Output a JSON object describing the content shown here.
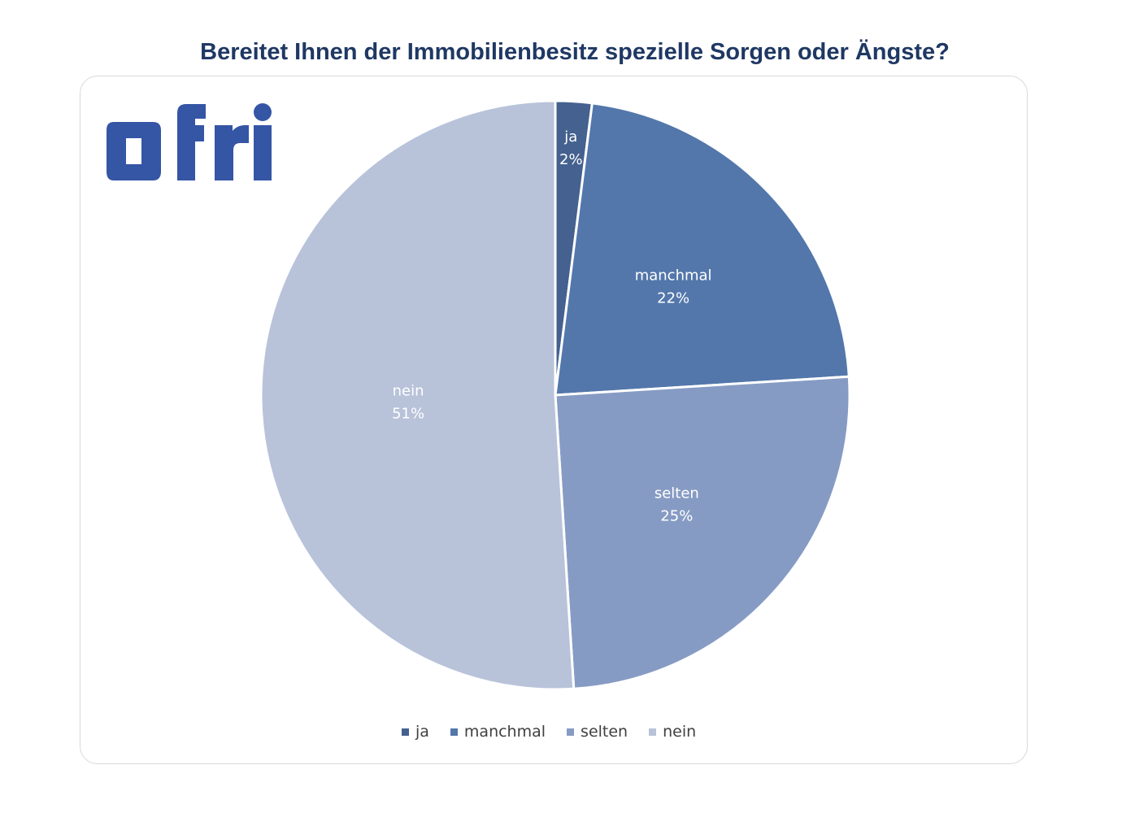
{
  "chart_data": {
    "type": "pie",
    "title": "Bereitet Ihnen der Immobilienbesitz spezielle Sorgen oder Ängste?",
    "categories": [
      "ja",
      "manchmal",
      "selten",
      "nein"
    ],
    "values": [
      2,
      22,
      25,
      51
    ],
    "value_labels": [
      "2%",
      "22%",
      "25%",
      "51%"
    ],
    "colors": [
      "#44618f",
      "#5377ab",
      "#869bc4",
      "#b8c3da"
    ],
    "legend": {
      "position": "bottom",
      "entries": [
        "ja",
        "manchmal",
        "selten",
        "nein"
      ]
    }
  },
  "logo": {
    "text": "ofri",
    "color": "#3555a5"
  }
}
